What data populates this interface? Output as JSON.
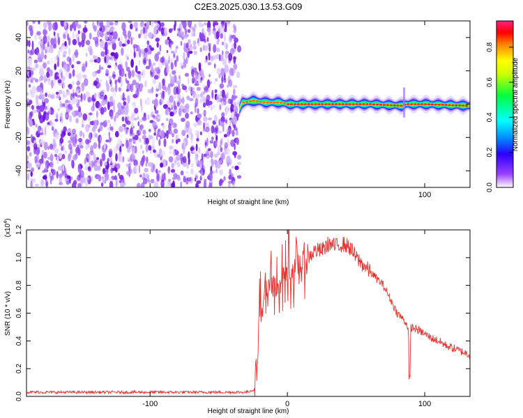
{
  "title": "C2E3.2025.030.13.53.G09",
  "chart_data": [
    {
      "type": "heatmap",
      "xlabel": "Height of straight line (km)",
      "ylabel": "Frequency (Hz)",
      "xlim": [
        -190,
        133
      ],
      "ylim": [
        -50,
        50
      ],
      "xticks": [
        -100,
        0,
        100
      ],
      "xtick_labels": [
        "-100",
        "",
        "100"
      ],
      "yticks": [
        -40,
        -20,
        0,
        20,
        40
      ],
      "ytick_labels": [
        "-40",
        "-20",
        "0",
        "20",
        "40"
      ],
      "noise_region_x": [
        -190,
        -35
      ],
      "signal_line": {
        "x": [
          -35,
          -33,
          -25,
          -15,
          -5,
          0,
          10,
          30,
          60,
          84,
          86,
          100,
          133
        ],
        "freq": [
          -3,
          1,
          2,
          1,
          1,
          0,
          0,
          0,
          0,
          -1,
          0,
          0,
          -1
        ]
      },
      "colorbar": {
        "label": "Normalized spectral amplitude",
        "range": [
          0,
          0.95
        ],
        "ticks": [
          0.0,
          0.2,
          0.4,
          0.6,
          0.8
        ],
        "tick_labels": [
          "0.0",
          "0.2",
          "0.4",
          "0.6",
          "0.8"
        ],
        "colors": [
          "#ffffff",
          "#8800ff",
          "#0000ff",
          "#00ffff",
          "#00ff00",
          "#ffff00",
          "#ff8000",
          "#ff0000",
          "#ff00ff"
        ]
      },
      "grid": false
    },
    {
      "type": "line",
      "xlabel": "Height of straight line (km)",
      "ylabel": "SNR (10 * v/v)",
      "y_multiplier": "(x10",
      "y_exponent": "4",
      "y_multiplier_close": ")",
      "xlim": [
        -190,
        133
      ],
      "ylim": [
        0,
        1.2
      ],
      "xticks": [
        -100,
        0,
        100
      ],
      "xtick_labels": [
        "-100",
        "0",
        "100"
      ],
      "yticks": [
        0.0,
        0.2,
        0.4,
        0.6,
        0.8,
        1.0,
        1.2
      ],
      "ytick_labels": [
        "0.0",
        "0.2",
        "0.4",
        "0.6",
        "0.8",
        "1.0",
        "1.2"
      ],
      "line_color": "#e8302c",
      "series": [
        {
          "x": [
            -190,
            -100,
            -50,
            -30,
            -24,
            -22,
            -20,
            -18,
            -16,
            -14,
            -12,
            -10,
            -5,
            0,
            5,
            10,
            15,
            20,
            25,
            30,
            35,
            40,
            45,
            50,
            55,
            60,
            65,
            70,
            75,
            80,
            85,
            88,
            89,
            90,
            95,
            100,
            105,
            110,
            115,
            120,
            125,
            133
          ],
          "y": [
            0.03,
            0.03,
            0.03,
            0.03,
            0.05,
            0.3,
            0.8,
            0.5,
            0.9,
            0.6,
            0.9,
            0.7,
            0.85,
            0.9,
            0.9,
            0.95,
            1.0,
            1.05,
            1.05,
            1.1,
            1.08,
            1.1,
            1.08,
            1.0,
            0.95,
            0.9,
            0.85,
            0.8,
            0.7,
            0.6,
            0.55,
            0.5,
            0.12,
            0.5,
            0.48,
            0.45,
            0.42,
            0.4,
            0.37,
            0.35,
            0.33,
            0.3
          ]
        }
      ],
      "grid": false
    }
  ]
}
